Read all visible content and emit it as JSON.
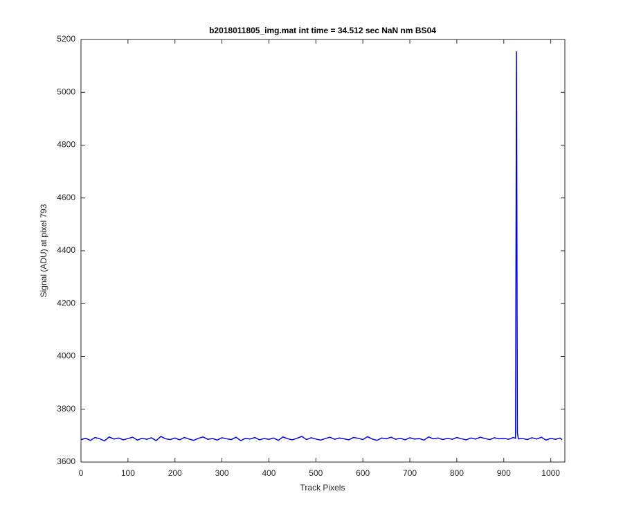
{
  "chart_data": {
    "type": "line",
    "title": "b2018011805_img.mat int time = 34.512 sec  NaN nm BS04",
    "x_label": "Track Pixels",
    "y_label": "Signal (ADU) at pixel 793",
    "xlim": [
      0,
      1030
    ],
    "ylim": [
      3600,
      5200
    ],
    "xticks": [
      0,
      100,
      200,
      300,
      400,
      500,
      600,
      700,
      800,
      900,
      1000
    ],
    "yticks": [
      3600,
      3800,
      4000,
      4200,
      4400,
      4600,
      4800,
      5000,
      5200
    ],
    "x": [
      0,
      10,
      20,
      30,
      40,
      50,
      60,
      70,
      80,
      90,
      100,
      110,
      120,
      130,
      140,
      150,
      160,
      170,
      180,
      190,
      200,
      210,
      220,
      230,
      240,
      250,
      260,
      270,
      280,
      290,
      300,
      310,
      320,
      330,
      340,
      350,
      360,
      370,
      380,
      390,
      400,
      410,
      420,
      430,
      440,
      450,
      460,
      470,
      480,
      490,
      500,
      510,
      520,
      530,
      540,
      550,
      560,
      570,
      580,
      590,
      600,
      610,
      620,
      630,
      640,
      650,
      660,
      670,
      680,
      690,
      700,
      710,
      720,
      730,
      740,
      750,
      760,
      770,
      780,
      790,
      800,
      810,
      820,
      830,
      840,
      850,
      860,
      870,
      880,
      890,
      900,
      910,
      920,
      925,
      927,
      929,
      931,
      940,
      950,
      960,
      970,
      980,
      990,
      1000,
      1010,
      1020,
      1024
    ],
    "series": [
      {
        "name": "signal",
        "color": "#0000ff",
        "values": [
          3685,
          3690,
          3682,
          3693,
          3688,
          3680,
          3695,
          3687,
          3691,
          3684,
          3689,
          3694,
          3683,
          3690,
          3686,
          3692,
          3681,
          3697,
          3688,
          3685,
          3691,
          3684,
          3693,
          3687,
          3682,
          3690,
          3695,
          3686,
          3689,
          3683,
          3692,
          3688,
          3685,
          3694,
          3681,
          3690,
          3687,
          3693,
          3684,
          3689,
          3686,
          3691,
          3682,
          3695,
          3688,
          3684,
          3690,
          3697,
          3685,
          3692,
          3687,
          3683,
          3689,
          3694,
          3686,
          3691,
          3688,
          3684,
          3693,
          3690,
          3685,
          3696,
          3687,
          3682,
          3691,
          3688,
          3694,
          3686,
          3690,
          3684,
          3692,
          3687,
          3689,
          3683,
          3695,
          3688,
          3691,
          3685,
          3690,
          3686,
          3693,
          3688,
          3684,
          3691,
          3687,
          3694,
          3689,
          3685,
          3692,
          3688,
          3690,
          3686,
          3693,
          3690,
          5155,
          3710,
          3688,
          3689,
          3685,
          3692,
          3687,
          3694,
          3683,
          3690,
          3686,
          3691,
          3684
        ]
      }
    ]
  }
}
